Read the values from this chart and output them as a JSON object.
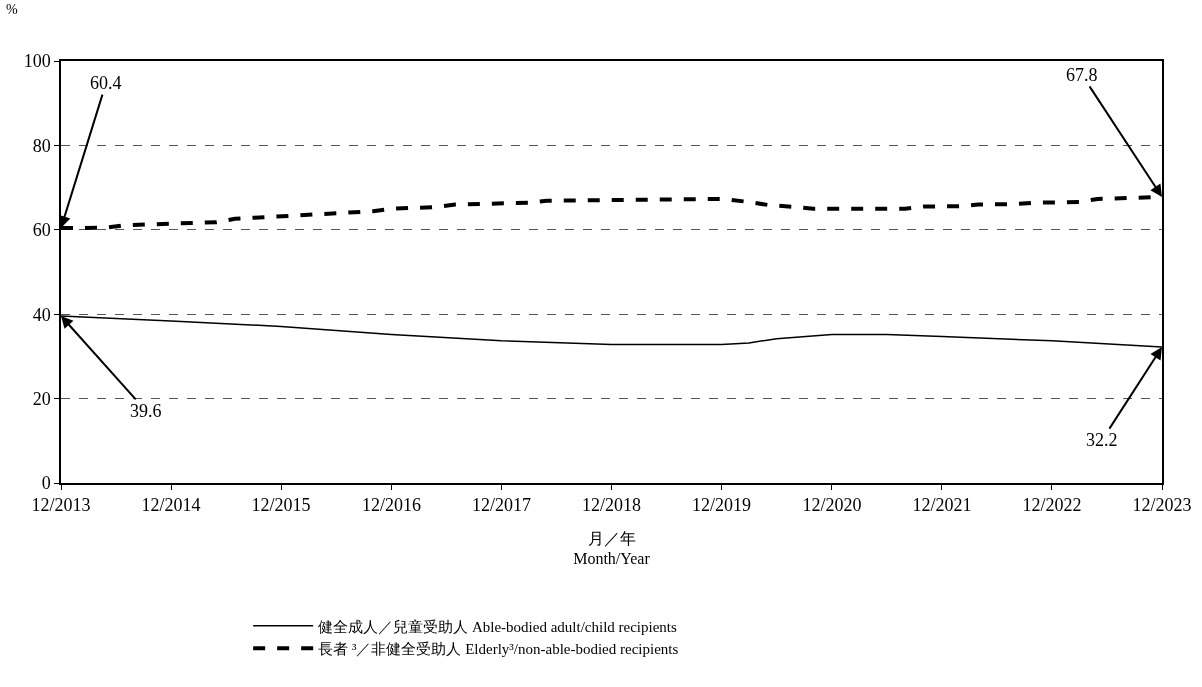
{
  "chart_data": {
    "type": "line",
    "ylabel": "%",
    "xlabel": "月／年\nMonth/Year",
    "xlim": [
      "2013-12",
      "2023-12"
    ],
    "xticks": [
      {
        "value": "2013-12",
        "label": "12/2013"
      },
      {
        "value": "2014-12",
        "label": "12/2014"
      },
      {
        "value": "2015-12",
        "label": "12/2015"
      },
      {
        "value": "2016-12",
        "label": "12/2016"
      },
      {
        "value": "2017-12",
        "label": "12/2017"
      },
      {
        "value": "2018-12",
        "label": "12/2018"
      },
      {
        "value": "2019-12",
        "label": "12/2019"
      },
      {
        "value": "2020-12",
        "label": "12/2020"
      },
      {
        "value": "2021-12",
        "label": "12/2021"
      },
      {
        "value": "2022-12",
        "label": "12/2022"
      },
      {
        "value": "2023-12",
        "label": "12/2023"
      }
    ],
    "ylim": [
      0,
      100
    ],
    "yticks": [
      0,
      20,
      40,
      60,
      80,
      100
    ],
    "grid": "y",
    "legend": "bottom",
    "marker": "none",
    "series": [
      {
        "name": "健全成人／兒童受助人 Able-bodied adult/child recipients",
        "color": "#000000",
        "line_style": "solid",
        "x": [
          "2013-12",
          "2014-12",
          "2015-12",
          "2016-12",
          "2017-12",
          "2018-12",
          "2019-12",
          "2020-03",
          "2020-06",
          "2020-12",
          "2021-06",
          "2021-12",
          "2022-12",
          "2023-12"
        ],
        "values": [
          39.6,
          38.4,
          37.1,
          35.2,
          33.7,
          32.8,
          32.8,
          33.2,
          34.2,
          35.2,
          35.2,
          34.7,
          33.7,
          32.2
        ]
      },
      {
        "name": "長者 ³／非健全受助人 Elderly³/non-able-bodied recipients",
        "color": "#000000",
        "line_style": "dashed",
        "x": [
          "2013-12",
          "2014-05",
          "2014-07",
          "2015-05",
          "2015-07",
          "2016-10",
          "2016-12",
          "2017-05",
          "2017-07",
          "2018-03",
          "2018-05",
          "2019-12",
          "2020-03",
          "2020-05",
          "2020-08",
          "2020-10",
          "2021-08",
          "2021-10",
          "2022-02",
          "2022-04",
          "2022-08",
          "2022-10",
          "2023-03",
          "2023-05",
          "2023-12"
        ],
        "values": [
          60.4,
          60.5,
          61.1,
          61.8,
          62.6,
          64.4,
          65.0,
          65.4,
          66.0,
          66.4,
          66.9,
          67.3,
          66.6,
          65.9,
          65.4,
          65.0,
          65.0,
          65.5,
          65.6,
          66.0,
          66.1,
          66.4,
          66.6,
          67.3,
          67.8
        ]
      }
    ],
    "annotations": [
      {
        "text": "60.4",
        "x": "2013-12",
        "y": 60.4
      },
      {
        "text": "39.6",
        "x": "2013-12",
        "y": 39.6
      },
      {
        "text": "67.8",
        "x": "2023-12",
        "y": 67.8
      },
      {
        "text": "32.2",
        "x": "2023-12",
        "y": 32.2
      }
    ]
  }
}
